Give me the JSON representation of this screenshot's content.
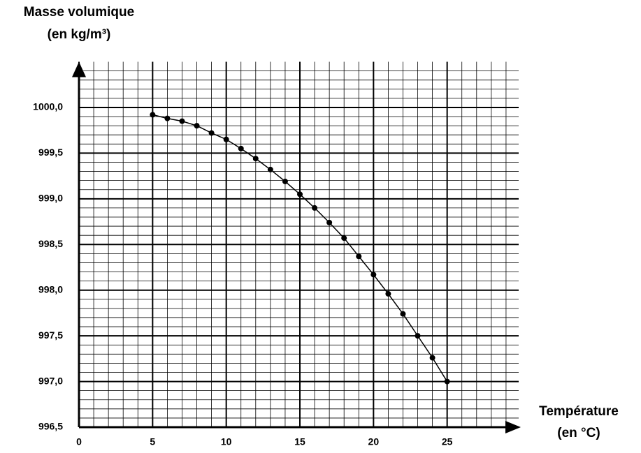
{
  "chart_data": {
    "type": "line",
    "y_label": "Masse volumique",
    "y_unit": "(en kg/m³)",
    "x_label": "Température",
    "x_unit": "(en °C)",
    "x": [
      5,
      6,
      7,
      8,
      9,
      10,
      11,
      12,
      13,
      14,
      15,
      16,
      17,
      18,
      19,
      20,
      21,
      22,
      23,
      24,
      25
    ],
    "series": [
      {
        "color": "#000000",
        "values": [
          999.92,
          999.88,
          999.85,
          999.8,
          999.72,
          999.65,
          999.55,
          999.44,
          999.32,
          999.19,
          999.05,
          998.9,
          998.74,
          998.57,
          998.37,
          998.17,
          997.96,
          997.74,
          997.5,
          997.26,
          997.0
        ]
      }
    ],
    "xlim": [
      0,
      30
    ],
    "ylim": [
      996.5,
      1000.5
    ],
    "xticks": [
      0,
      5,
      10,
      15,
      20,
      25
    ],
    "yticks": [
      {
        "value": 996.5,
        "label": "996,5"
      },
      {
        "value": 997.0,
        "label": "997,0"
      },
      {
        "value": 997.5,
        "label": "997,5"
      },
      {
        "value": 998.0,
        "label": "998,0"
      },
      {
        "value": 998.5,
        "label": "998,5"
      },
      {
        "value": 999.0,
        "label": "999,0"
      },
      {
        "value": 999.5,
        "label": "999,5"
      },
      {
        "value": 1000.0,
        "label": "1000,0"
      }
    ],
    "grid": true
  }
}
